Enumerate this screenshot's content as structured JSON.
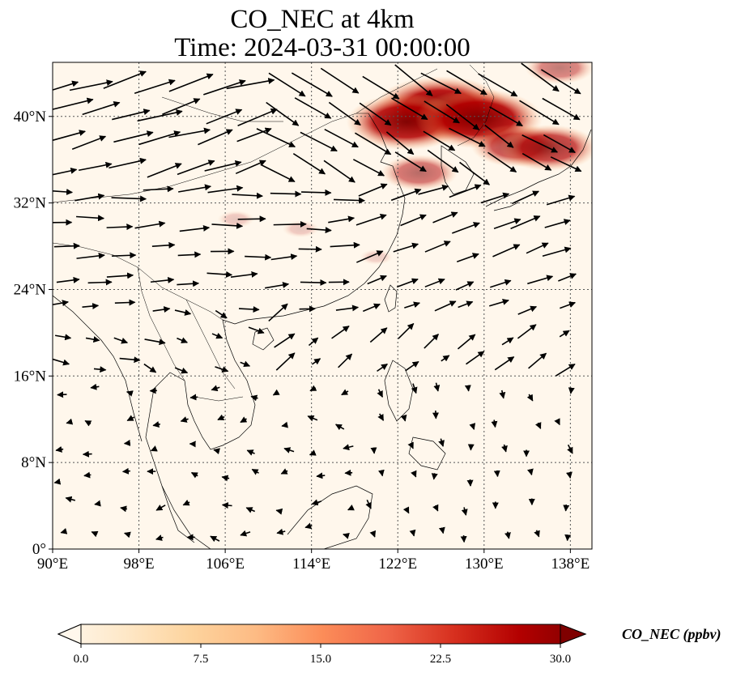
{
  "title": {
    "line1": "CO_NEC at 4km",
    "line2": "Time: 2024-03-31 00:00:00"
  },
  "map": {
    "lon_range": [
      90,
      140
    ],
    "lat_range": [
      0,
      45
    ],
    "lon_ticks": [
      {
        "value": 90,
        "label": "90°E"
      },
      {
        "value": 98,
        "label": "98°E"
      },
      {
        "value": 106,
        "label": "106°E"
      },
      {
        "value": 114,
        "label": "114°E"
      },
      {
        "value": 122,
        "label": "122°E"
      },
      {
        "value": 130,
        "label": "130°E"
      },
      {
        "value": 138,
        "label": "138°E"
      }
    ],
    "lat_ticks": [
      {
        "value": 0,
        "label": "0°"
      },
      {
        "value": 8,
        "label": "8°N"
      },
      {
        "value": 16,
        "label": "16°N"
      },
      {
        "value": 24,
        "label": "24°N"
      },
      {
        "value": 32,
        "label": "32°N"
      },
      {
        "value": 40,
        "label": "40°N"
      }
    ],
    "gridlines": true,
    "plumes": [
      {
        "lon": 126,
        "lat": 40.8,
        "value": 30
      },
      {
        "lon": 122.8,
        "lat": 39.5,
        "value": 26
      },
      {
        "lon": 129.5,
        "lat": 39.8,
        "value": 28
      },
      {
        "lon": 133,
        "lat": 37.3,
        "value": 18
      },
      {
        "lon": 136,
        "lat": 37.1,
        "value": 20
      },
      {
        "lon": 124,
        "lat": 34.8,
        "value": 14
      },
      {
        "lon": 137,
        "lat": 44.5,
        "value": 12
      },
      {
        "lon": 107,
        "lat": 30.5,
        "value": 3
      },
      {
        "lon": 113,
        "lat": 29.6,
        "value": 3
      },
      {
        "lon": 120,
        "lat": 27,
        "value": 2
      }
    ]
  },
  "colorbar": {
    "label": "CO_NEC (ppbv)",
    "min": 0,
    "max": 30,
    "ticks": [
      "0.0",
      "7.5",
      "15.0",
      "22.5",
      "30.0"
    ],
    "colors": [
      "#fff5eb",
      "#fee6ce",
      "#fdd0a2",
      "#fdae6b",
      "#fd8d3c",
      "#f16913",
      "#d94801",
      "#a63603",
      "#7f2704"
    ]
  }
}
